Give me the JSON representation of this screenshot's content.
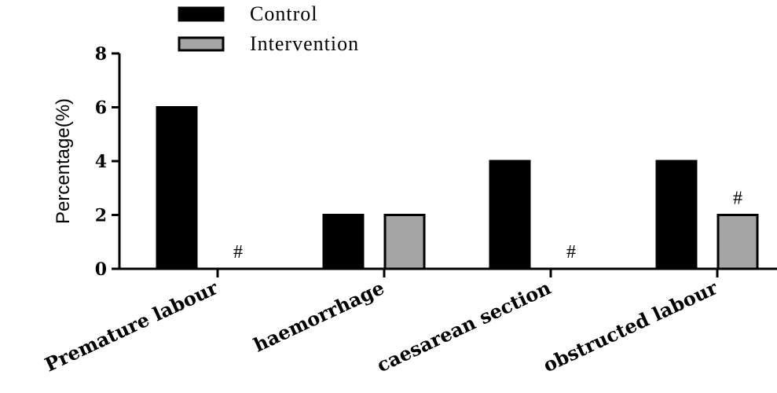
{
  "chart_data": {
    "type": "bar",
    "categories": [
      "Premature labour",
      "haemorrhage",
      "caesarean section",
      "obstructed labour"
    ],
    "series": [
      {
        "name": "Control",
        "values": [
          6,
          2,
          4,
          4
        ],
        "color": "#000000"
      },
      {
        "name": "Intervention",
        "values": [
          0,
          2,
          0,
          2
        ],
        "color": "#a5a5a5"
      }
    ],
    "annotations": [
      {
        "category": 0,
        "series": 1,
        "text": "#"
      },
      {
        "category": 2,
        "series": 1,
        "text": "#"
      },
      {
        "category": 3,
        "series": 1,
        "text": "#"
      }
    ],
    "title": "",
    "xlabel": "",
    "ylabel": "Percentage(%)",
    "ylim": [
      0,
      8
    ],
    "yticks": [
      0,
      2,
      4,
      6,
      8
    ],
    "grid": false,
    "legend_position": "top-left"
  }
}
